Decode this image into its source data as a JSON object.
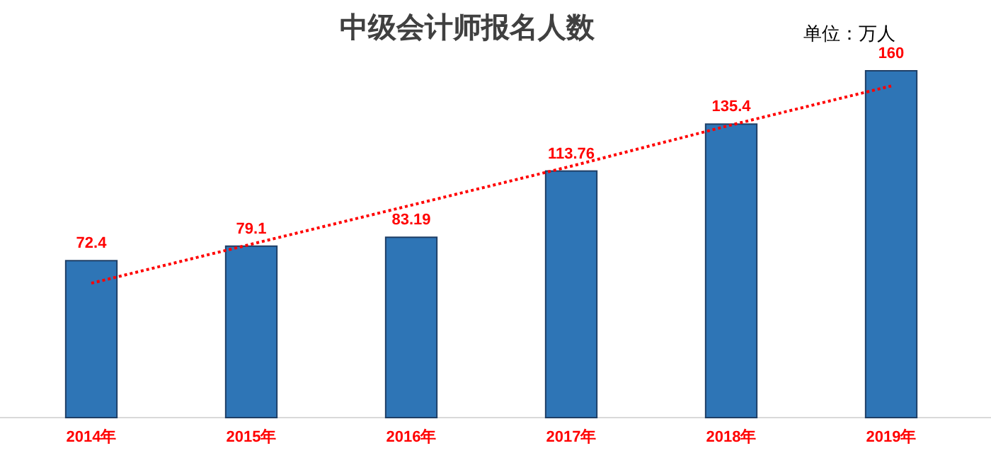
{
  "chart_data": {
    "type": "bar",
    "title": "中级会计师报名人数",
    "annotations": [
      "单位：万人"
    ],
    "categories": [
      "2014年",
      "2015年",
      "2016年",
      "2017年",
      "2018年",
      "2019年"
    ],
    "series": [
      {
        "color": "#2e75b6",
        "values": [
          72.4,
          79.1,
          83.19,
          113.76,
          135.4,
          160
        ],
        "value_labels": [
          "72.4",
          "79.1",
          "83.19",
          "113.76",
          "135.4",
          "160"
        ]
      },
      {
        "type": "line",
        "color": "#ff0000",
        "line_style": "dotted",
        "values": [
          62,
          80,
          98,
          116,
          135,
          153
        ]
      }
    ],
    "ylim": [
      0,
      160
    ],
    "tick_labels": "x"
  }
}
